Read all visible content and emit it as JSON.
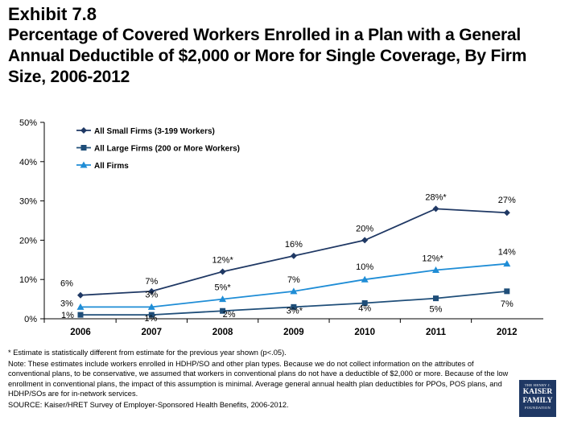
{
  "exhibit": "Exhibit 7.8",
  "title": "Percentage of Covered Workers Enrolled in a Plan with a General Annual Deductible of $2,000 or More for Single Coverage, By Firm Size, 2006-2012",
  "chart_data": {
    "type": "line",
    "categories": [
      "2006",
      "2007",
      "2008",
      "2009",
      "2010",
      "2011",
      "2012"
    ],
    "ylim": [
      0,
      50
    ],
    "yticks": [
      "0%",
      "10%",
      "20%",
      "30%",
      "40%",
      "50%"
    ],
    "legend_position": "top-left",
    "grid": false,
    "series": [
      {
        "name": "All Small Firms (3-199 Workers)",
        "marker": "diamond",
        "color": "#1f3864",
        "values": [
          6,
          7,
          12,
          16,
          20,
          28,
          27
        ],
        "labels": [
          "6%",
          "7%",
          "12%*",
          "16%",
          "20%",
          "28%*",
          "27%"
        ]
      },
      {
        "name": "All Large Firms (200 or More Workers)",
        "marker": "square",
        "color": "#1f4e79",
        "values": [
          1,
          1,
          2,
          3,
          4,
          5.2,
          7
        ],
        "labels": [
          "1%",
          "1%",
          "2%",
          "3%*",
          "4%",
          "5%",
          "7%"
        ]
      },
      {
        "name": "All Firms",
        "marker": "triangle",
        "color": "#1f8dd6",
        "values": [
          3,
          3,
          5,
          7,
          10,
          12.4,
          14
        ],
        "labels": [
          "3%",
          "3%",
          "5%*",
          "7%",
          "10%",
          "12%*",
          "14%"
        ]
      }
    ]
  },
  "notes": {
    "asterisk": "* Estimate is statistically different from estimate for the previous year shown (p<.05).",
    "note": "Note: These estimates include workers enrolled in HDHP/SO and other plan types.  Because we do not collect information on the attributes of conventional plans, to be conservative, we assumed that workers in conventional plans do not have a deductible of $2,000 or more.  Because of the low enrollment in conventional plans, the impact of this assumption is minimal. Average general annual health plan deductibles for PPOs, POS plans, and HDHP/SOs are for in-network services.",
    "source": "SOURCE: Kaiser/HRET Survey of Employer-Sponsored Health Benefits, 2006-2012."
  },
  "logo": {
    "line1": "THE HENRY J.",
    "line2a": "KAISER",
    "line2b": "FAMILY",
    "line3": "FOUNDATION"
  }
}
